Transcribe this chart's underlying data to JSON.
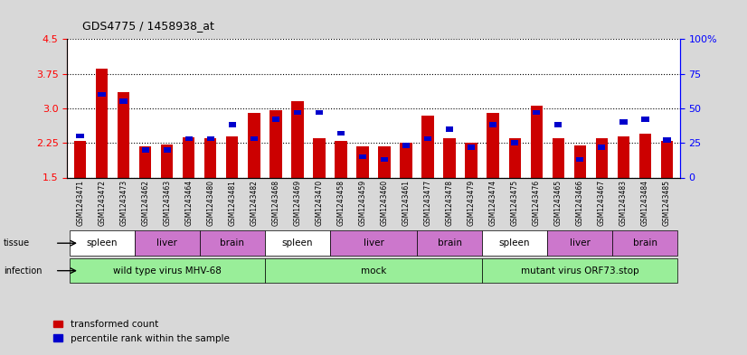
{
  "title": "GDS4775 / 1458938_at",
  "samples": [
    "GSM1243471",
    "GSM1243472",
    "GSM1243473",
    "GSM1243462",
    "GSM1243463",
    "GSM1243464",
    "GSM1243480",
    "GSM1243481",
    "GSM1243482",
    "GSM1243468",
    "GSM1243469",
    "GSM1243470",
    "GSM1243458",
    "GSM1243459",
    "GSM1243460",
    "GSM1243461",
    "GSM1243477",
    "GSM1243478",
    "GSM1243479",
    "GSM1243474",
    "GSM1243475",
    "GSM1243476",
    "GSM1243465",
    "GSM1243466",
    "GSM1243467",
    "GSM1243483",
    "GSM1243484",
    "GSM1243485"
  ],
  "red_values": [
    2.3,
    3.85,
    3.35,
    2.18,
    2.22,
    2.37,
    2.35,
    2.4,
    2.9,
    2.95,
    3.15,
    2.35,
    2.3,
    2.18,
    2.18,
    2.25,
    2.85,
    2.35,
    2.25,
    2.9,
    2.35,
    3.05,
    2.35,
    2.2,
    2.35,
    2.4,
    2.45,
    2.3
  ],
  "blue_values": [
    30,
    60,
    55,
    20,
    20,
    28,
    28,
    38,
    28,
    42,
    47,
    47,
    32,
    15,
    13,
    23,
    28,
    35,
    22,
    38,
    25,
    47,
    38,
    13,
    22,
    40,
    42,
    27
  ],
  "ylim_left": [
    1.5,
    4.5
  ],
  "ylim_right": [
    0,
    100
  ],
  "yticks_left": [
    1.5,
    2.25,
    3.0,
    3.75,
    4.5
  ],
  "yticks_right": [
    0,
    25,
    50,
    75,
    100
  ],
  "infection_groups": [
    {
      "label": "wild type virus MHV-68",
      "start": 0,
      "end": 9
    },
    {
      "label": "mock",
      "start": 9,
      "end": 19
    },
    {
      "label": "mutant virus ORF73.stop",
      "start": 19,
      "end": 28
    }
  ],
  "tissue_groups": [
    {
      "label": "spleen",
      "start": 0,
      "end": 3,
      "color": "#FFFFFF"
    },
    {
      "label": "liver",
      "start": 3,
      "end": 6,
      "color": "#CC77CC"
    },
    {
      "label": "brain",
      "start": 6,
      "end": 9,
      "color": "#CC77CC"
    },
    {
      "label": "spleen",
      "start": 9,
      "end": 12,
      "color": "#FFFFFF"
    },
    {
      "label": "liver",
      "start": 12,
      "end": 16,
      "color": "#CC77CC"
    },
    {
      "label": "brain",
      "start": 16,
      "end": 19,
      "color": "#CC77CC"
    },
    {
      "label": "spleen",
      "start": 19,
      "end": 22,
      "color": "#FFFFFF"
    },
    {
      "label": "liver",
      "start": 22,
      "end": 25,
      "color": "#CC77CC"
    },
    {
      "label": "brain",
      "start": 25,
      "end": 28,
      "color": "#CC77CC"
    }
  ],
  "bar_color_red": "#CC0000",
  "bar_color_blue": "#0000CC",
  "bar_width": 0.55,
  "bg_color": "#D8D8D8",
  "plot_bg": "#FFFFFF",
  "infection_color": "#99EE99",
  "xlabel_fontsize": 5.5,
  "ytick_fontsize": 8
}
